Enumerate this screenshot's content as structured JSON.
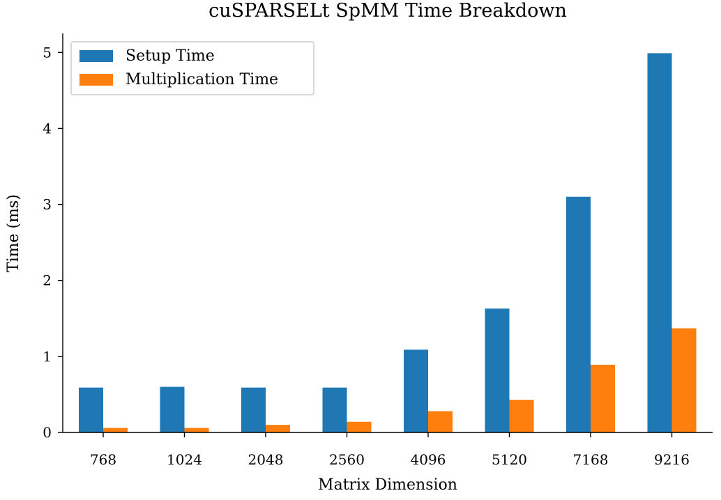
{
  "chart_data": {
    "type": "bar",
    "title": "cuSPARSELt SpMM Time Breakdown",
    "xlabel": "Matrix Dimension",
    "ylabel": "Time (ms)",
    "categories": [
      "768",
      "1024",
      "2048",
      "2560",
      "4096",
      "5120",
      "7168",
      "9216"
    ],
    "series": [
      {
        "name": "Setup Time",
        "color": "#1f77b4",
        "values": [
          0.59,
          0.6,
          0.59,
          0.59,
          1.09,
          1.63,
          3.1,
          4.99
        ]
      },
      {
        "name": "Multiplication Time",
        "color": "#ff7f0e",
        "values": [
          0.06,
          0.06,
          0.1,
          0.14,
          0.28,
          0.43,
          0.89,
          1.37
        ]
      }
    ],
    "ylim": [
      0,
      5.25
    ],
    "yticks": [
      0,
      1,
      2,
      3,
      4,
      5
    ],
    "grid": false,
    "legend": "top-left"
  }
}
